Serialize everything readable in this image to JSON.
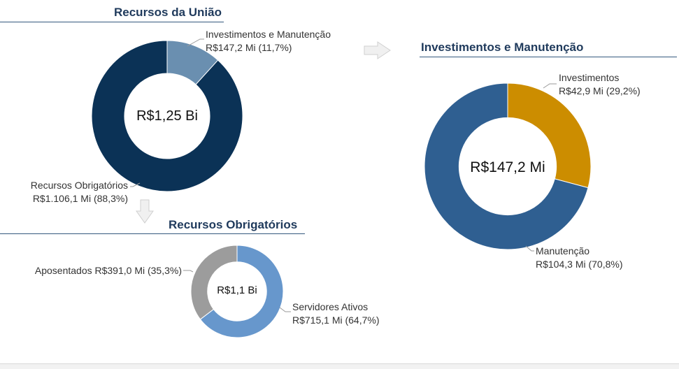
{
  "chart_data": [
    {
      "type": "donut",
      "title": "Recursos da União",
      "center_label": "R$1,25 Bi",
      "slices": [
        {
          "name": "Investimentos e Manutenção",
          "value": 147.2,
          "percent": 11.7,
          "value_label": "R$147,2 Mi (11,7%)",
          "color": "#6a8fb0"
        },
        {
          "name": "Recursos Obrigatórios",
          "value": 1106.1,
          "percent": 88.3,
          "value_label": "R$1.106,1 Mi (88,3%)",
          "color": "#0b3256"
        }
      ]
    },
    {
      "type": "donut",
      "title": "Investimentos e Manutenção",
      "center_label": "R$147,2 Mi",
      "slices": [
        {
          "name": "Investimentos",
          "value": 42.9,
          "percent": 29.2,
          "value_label": "R$42,9 Mi (29,2%)",
          "color": "#cc8d00"
        },
        {
          "name": "Manutenção",
          "value": 104.3,
          "percent": 70.8,
          "value_label": "R$104,3 Mi (70,8%)",
          "color": "#2f5f91"
        }
      ]
    },
    {
      "type": "donut",
      "title": "Recursos Obrigatórios",
      "center_label": "R$1,1 Bi",
      "slices": [
        {
          "name": "Servidores Ativos",
          "value": 715.1,
          "percent": 64.7,
          "value_label": "R$715,1 Mi (64,7%)",
          "color": "#6797cc"
        },
        {
          "name": "Aposentados",
          "value": 391.0,
          "percent": 35.3,
          "value_label": "R$391,0 Mi (35,3%)",
          "color": "#9c9c9c"
        }
      ]
    }
  ],
  "labels": {
    "aposentados_inline": "Aposentados R$391,0 Mi (35,3%)"
  }
}
